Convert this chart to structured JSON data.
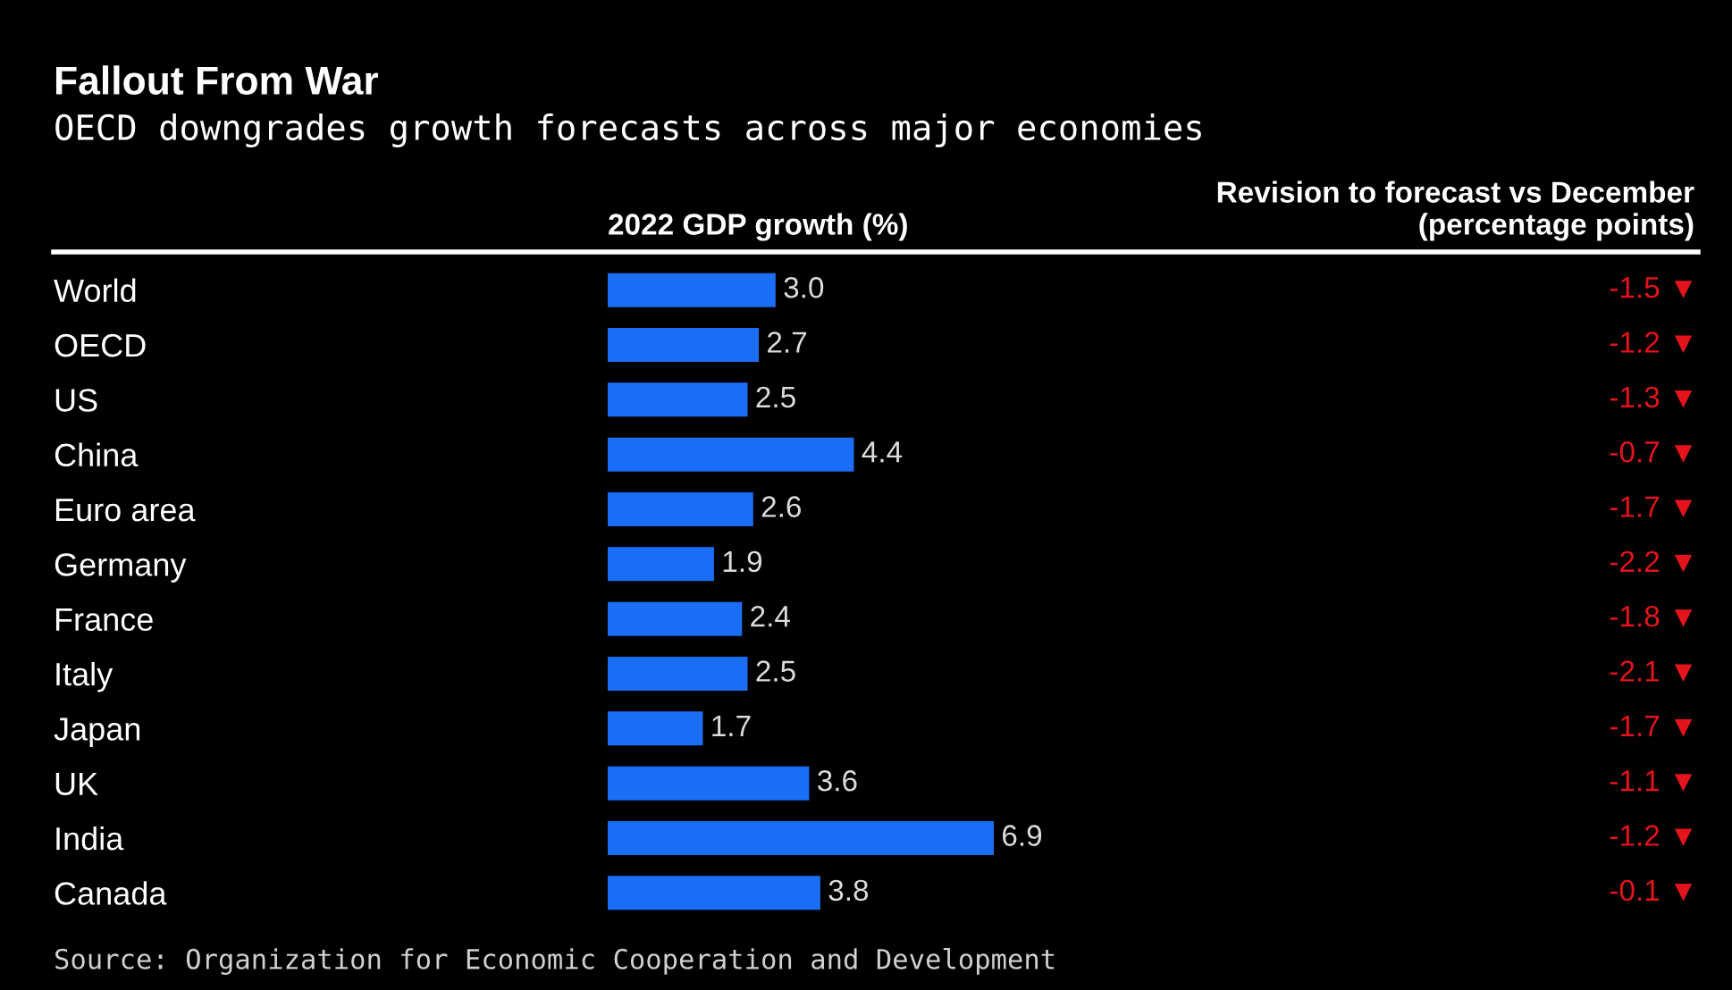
{
  "chart_data": [
    {
      "type": "bar",
      "orientation": "horizontal",
      "title": "Fallout From War",
      "subtitle": "OECD downgrades growth forecasts across major economies",
      "xlabel": "2022 GDP growth (%)",
      "categories": [
        "World",
        "OECD",
        "US",
        "China",
        "Euro area",
        "Germany",
        "France",
        "Italy",
        "Japan",
        "UK",
        "India",
        "Canada"
      ],
      "values": [
        3.0,
        2.7,
        2.5,
        4.4,
        2.6,
        1.9,
        2.4,
        2.5,
        1.7,
        3.6,
        6.9,
        3.8
      ],
      "value_labels": [
        "3.0",
        "2.7",
        "2.5",
        "4.4",
        "2.6",
        "1.9",
        "2.4",
        "2.5",
        "1.7",
        "3.6",
        "6.9",
        "3.8"
      ],
      "color": "#1a6ef5",
      "annotations": [
        "Source: Organization for Economic Cooperation and Development"
      ]
    },
    {
      "type": "other",
      "title": "Revision to forecast vs December\n(percentage points)",
      "color": "#e3141b",
      "annotations": [
        "-1.5 ▼",
        "-1.2 ▼",
        "-1.3 ▼",
        "-0.7 ▼",
        "-1.7 ▼",
        "-2.2 ▼",
        "-1.8 ▼",
        "-2.1 ▼",
        "-1.7 ▼",
        "-1.1 ▼",
        "-1.2 ▼",
        "-0.1 ▼"
      ]
    }
  ]
}
